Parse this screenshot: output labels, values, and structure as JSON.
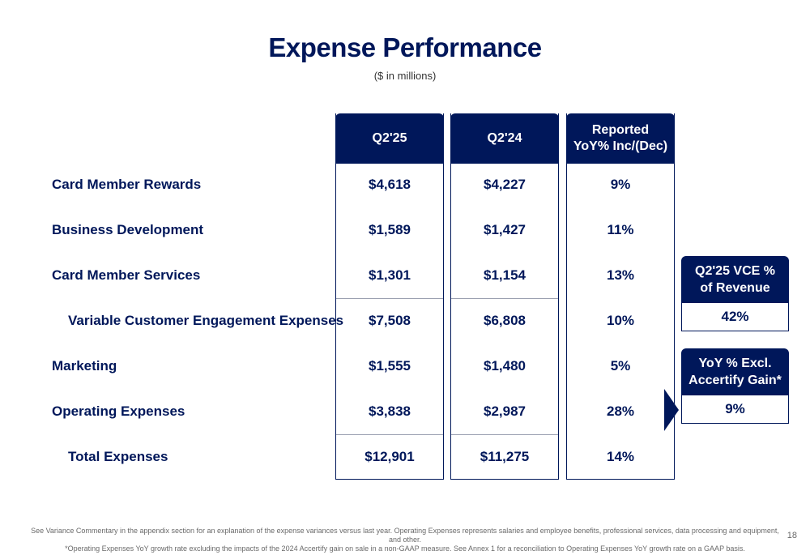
{
  "header": {
    "title": "Expense Performance",
    "subtitle": "($ in millions)"
  },
  "columns": [
    {
      "label": "Q2'25"
    },
    {
      "label": "Q2'24"
    },
    {
      "label": "Reported\nYoY% Inc/(Dec)"
    }
  ],
  "rows": [
    {
      "label": "Card Member Rewards",
      "values": [
        "$4,618",
        "$4,227",
        "9%"
      ]
    },
    {
      "label": "Business Development",
      "values": [
        "$1,589",
        "$1,427",
        "11%"
      ]
    },
    {
      "label": "Card Member Services",
      "values": [
        "$1,301",
        "$1,154",
        "13%"
      ]
    },
    {
      "label": "Variable Customer Engagement Expenses",
      "values": [
        "$7,508",
        "$6,808",
        "10%"
      ]
    },
    {
      "label": "Marketing",
      "values": [
        "$1,555",
        "$1,480",
        "5%"
      ]
    },
    {
      "label": "Operating Expenses",
      "values": [
        "$3,838",
        "$2,987",
        "28%"
      ]
    },
    {
      "label": "Total Expenses",
      "values": [
        "$12,901",
        "$11,275",
        "14%"
      ]
    }
  ],
  "side_boxes": [
    {
      "label": "Q2'25 VCE %\nof Revenue",
      "value": "42%"
    },
    {
      "label": "YoY % Excl.\nAccertify Gain*",
      "value": "9%"
    }
  ],
  "footnote": {
    "line1": "See Variance Commentary in the appendix section for an explanation of the expense variances versus last year. Operating Expenses represents salaries and employee benefits, professional services, data processing and equipment, and other.",
    "line2": "*Operating Expenses YoY growth rate excluding the impacts of the 2024 Accertify gain on sale in a non-GAAP measure. See Annex 1 for a reconciliation to Operating Expenses YoY growth rate on a GAAP basis."
  },
  "page_number": "18",
  "colors": {
    "brand_navy": "#00175a",
    "separator": "#9aa0b0"
  }
}
